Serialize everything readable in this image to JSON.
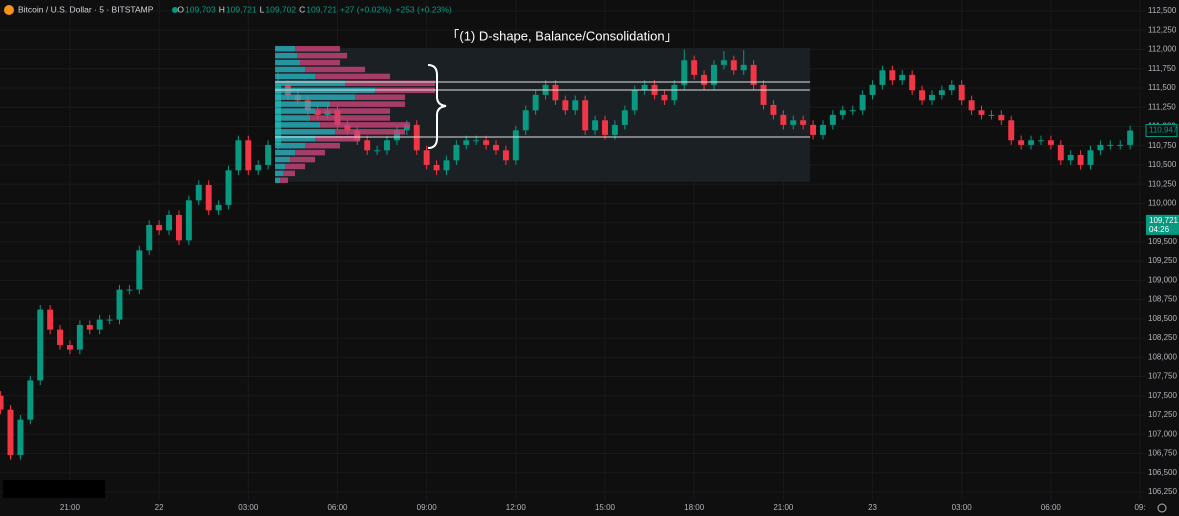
{
  "chart_data": {
    "type": "candlestick",
    "header": {
      "symbol": "Bitcoin / U.S. Dollar · 5 · BITSTAMP",
      "ohlc": [
        {
          "key": "O",
          "value": "109,703"
        },
        {
          "key": "H",
          "value": "109,721"
        },
        {
          "key": "L",
          "value": "109,702"
        },
        {
          "key": "C",
          "value": "109,721"
        }
      ],
      "changes": [
        "+27 (+0.02%)",
        "+253 (+0.23%)"
      ]
    },
    "annotation": "「(1) D-shape, Balance/Consolidation」",
    "xlim": [
      -0.06,
      115.5
    ],
    "ylim": [
      106146,
      112643
    ],
    "grid": true,
    "xticks": [
      {
        "value": 7,
        "label": "21:00"
      },
      {
        "value": 16,
        "label": "22"
      },
      {
        "value": 25,
        "label": "03:00"
      },
      {
        "value": 34,
        "label": "06:00"
      },
      {
        "value": 43,
        "label": "09:00"
      },
      {
        "value": 52,
        "label": "12:00"
      },
      {
        "value": 61,
        "label": "15:00"
      },
      {
        "value": 70,
        "label": "18:00"
      },
      {
        "value": 79,
        "label": "21:00"
      },
      {
        "value": 88,
        "label": "23"
      },
      {
        "value": 97,
        "label": "03:00"
      },
      {
        "value": 106,
        "label": "06:00"
      },
      {
        "value": 115,
        "label": "09:"
      }
    ],
    "yticks": [
      {
        "value": 112500,
        "label": "112,500"
      },
      {
        "value": 112250,
        "label": "112,250"
      },
      {
        "value": 112000,
        "label": "112,000"
      },
      {
        "value": 111750,
        "label": "111,750"
      },
      {
        "value": 111500,
        "label": "111,500"
      },
      {
        "value": 111250,
        "label": "111,250"
      },
      {
        "value": 111000,
        "label": "111,000"
      },
      {
        "value": 110750,
        "label": "110,750"
      },
      {
        "value": 110500,
        "label": "110,500"
      },
      {
        "value": 110250,
        "label": "110,250"
      },
      {
        "value": 110000,
        "label": "110,000"
      },
      {
        "value": 109750,
        "label": "109,750"
      },
      {
        "value": 109500,
        "label": "109,500"
      },
      {
        "value": 109250,
        "label": "109,250"
      },
      {
        "value": 109000,
        "label": "109,000"
      },
      {
        "value": 108750,
        "label": "108,750"
      },
      {
        "value": 108500,
        "label": "108,500"
      },
      {
        "value": 108250,
        "label": "108,250"
      },
      {
        "value": 108000,
        "label": "108,000"
      },
      {
        "value": 107750,
        "label": "107,750"
      },
      {
        "value": 107500,
        "label": "107,500"
      },
      {
        "value": 107250,
        "label": "107,250"
      },
      {
        "value": 107000,
        "label": "107,000"
      },
      {
        "value": 106750,
        "label": "106,750"
      },
      {
        "value": 106500,
        "label": "106,500"
      },
      {
        "value": 106250,
        "label": "106,250"
      }
    ],
    "up_color": "#089981",
    "down_color": "#f23645",
    "ohlc": {
      "open": [
        107500,
        107320,
        106730,
        107190,
        107700,
        108620,
        108360,
        108160,
        108100,
        108420,
        108360,
        108490,
        108490,
        108880,
        108880,
        109390,
        109720,
        109650,
        109850,
        109520,
        110040,
        110240,
        109910,
        109980,
        110430,
        110820,
        110430,
        110500,
        110760,
        111540,
        111410,
        111340,
        111210,
        111150,
        111210,
        111020,
        110950,
        110820,
        110690,
        110690,
        110820,
        110950,
        111020,
        110690,
        110500,
        110430,
        110560,
        110760,
        110820,
        110820,
        110760,
        110690,
        110560,
        110950,
        111210,
        111410,
        111540,
        111340,
        111210,
        111340,
        110950,
        111080,
        110890,
        111020,
        111210,
        111470,
        111540,
        111410,
        111340,
        111540,
        111860,
        111670,
        111540,
        111800,
        111860,
        111730,
        111800,
        111540,
        111280,
        111150,
        111020,
        111080,
        111020,
        110890,
        111020,
        111150,
        111210,
        111210,
        111410,
        111540,
        111730,
        111600,
        111670,
        111470,
        111340,
        111410,
        111470,
        111540,
        111340,
        111210,
        111150,
        111150,
        111080,
        110820,
        110760,
        110820,
        110820,
        110760,
        110560,
        110630,
        110500,
        110690,
        110760,
        110760,
        110760
      ],
      "high": [
        107560,
        107380,
        107250,
        107760,
        108680,
        108680,
        108420,
        108220,
        108480,
        108480,
        108550,
        108550,
        108940,
        108940,
        109450,
        109780,
        109780,
        109910,
        109910,
        110100,
        110300,
        110300,
        110040,
        110490,
        110880,
        110880,
        110560,
        110820,
        111700,
        111600,
        111470,
        111400,
        111270,
        111270,
        111270,
        111080,
        111010,
        110880,
        110750,
        110880,
        111010,
        111080,
        111080,
        110750,
        110560,
        110620,
        110820,
        110880,
        110880,
        110880,
        110820,
        110750,
        111010,
        111270,
        111470,
        111600,
        111600,
        111400,
        111400,
        111400,
        111140,
        111140,
        111080,
        111270,
        111530,
        111600,
        111600,
        111470,
        111600,
        112000,
        111920,
        111730,
        111860,
        111980,
        111920,
        111990,
        111860,
        111600,
        111340,
        111210,
        111140,
        111140,
        111080,
        111080,
        111210,
        111270,
        111270,
        111470,
        111600,
        111790,
        111790,
        111730,
        111730,
        111530,
        111470,
        111530,
        111600,
        111600,
        111400,
        111270,
        111210,
        111210,
        111140,
        110880,
        110880,
        110880,
        110880,
        110820,
        110690,
        110690,
        110750,
        110820,
        110820,
        110820,
        111010
      ],
      "low": [
        107260,
        106670,
        106670,
        107130,
        107640,
        108300,
        108100,
        108040,
        108040,
        108300,
        108300,
        108430,
        108430,
        108820,
        108820,
        109330,
        109590,
        109590,
        109460,
        109460,
        109980,
        109850,
        109850,
        109920,
        110370,
        110370,
        110370,
        110440,
        110700,
        111350,
        111280,
        111150,
        111090,
        111090,
        110960,
        110890,
        110760,
        110630,
        110630,
        110630,
        110760,
        110890,
        110630,
        110440,
        110370,
        110370,
        110500,
        110700,
        110760,
        110700,
        110630,
        110500,
        110500,
        110890,
        111150,
        111350,
        111280,
        111150,
        111150,
        110890,
        110890,
        110830,
        110830,
        110960,
        111150,
        111410,
        111350,
        111280,
        111280,
        111480,
        111610,
        111480,
        111480,
        111740,
        111670,
        111670,
        111480,
        111220,
        111090,
        110960,
        110960,
        110960,
        110830,
        110830,
        110960,
        111090,
        111150,
        111150,
        111350,
        111480,
        111540,
        111540,
        111410,
        111280,
        111280,
        111350,
        111410,
        111280,
        111150,
        111090,
        111090,
        111020,
        110760,
        110700,
        110700,
        110760,
        110700,
        110500,
        110500,
        110440,
        110440,
        110630,
        110700,
        110700,
        110700
      ],
      "close": [
        107320,
        106730,
        107190,
        107700,
        108620,
        108360,
        108160,
        108100,
        108420,
        108360,
        108490,
        108490,
        108880,
        108880,
        109390,
        109720,
        109650,
        109850,
        109520,
        110040,
        110240,
        109910,
        109980,
        110430,
        110820,
        110430,
        110500,
        110760,
        111540,
        111410,
        111340,
        111210,
        111150,
        111210,
        111020,
        110950,
        110820,
        110690,
        110690,
        110820,
        110950,
        111020,
        110690,
        110500,
        110430,
        110560,
        110760,
        110820,
        110820,
        110760,
        110690,
        110560,
        110950,
        111210,
        111410,
        111540,
        111340,
        111210,
        111340,
        110950,
        111080,
        110890,
        111020,
        111210,
        111470,
        111540,
        111410,
        111340,
        111540,
        111860,
        111670,
        111540,
        111800,
        111860,
        111730,
        111800,
        111540,
        111280,
        111150,
        111020,
        111080,
        111020,
        110890,
        111020,
        111150,
        111210,
        111210,
        111410,
        111540,
        111730,
        111600,
        111670,
        111470,
        111340,
        111410,
        111470,
        111540,
        111340,
        111210,
        111150,
        111150,
        111080,
        110820,
        110760,
        110820,
        110820,
        110760,
        110560,
        110630,
        110500,
        110690,
        110760,
        110760,
        110760,
        110947
      ]
    },
    "zone": {
      "xlim": [
        27.7,
        81.7
      ],
      "ylim": [
        110280,
        112020
      ],
      "color": "#1b2024"
    },
    "levels": [
      111578,
      111473,
      110863
    ],
    "volume_profile": {
      "up_color": "#2bb3c0",
      "down_color": "#c8457a",
      "prices": [
        112010,
        111920,
        111830,
        111740,
        111650,
        111560,
        111470,
        111380,
        111290,
        111200,
        111110,
        111020,
        110930,
        110840,
        110750,
        110660,
        110570,
        110480,
        110390,
        110300
      ],
      "up": [
        20,
        22,
        25,
        30,
        40,
        70,
        100,
        80,
        55,
        40,
        35,
        45,
        60,
        40,
        30,
        20,
        15,
        10,
        8,
        5
      ],
      "down": [
        45,
        50,
        40,
        60,
        75,
        90,
        60,
        50,
        75,
        75,
        80,
        90,
        70,
        45,
        35,
        30,
        25,
        20,
        12,
        8
      ]
    },
    "price_labels": [
      {
        "value": 110947,
        "label": "110,947"
      },
      {
        "value": 109721,
        "label": "109,721",
        "countdown": "04:26"
      }
    ]
  }
}
